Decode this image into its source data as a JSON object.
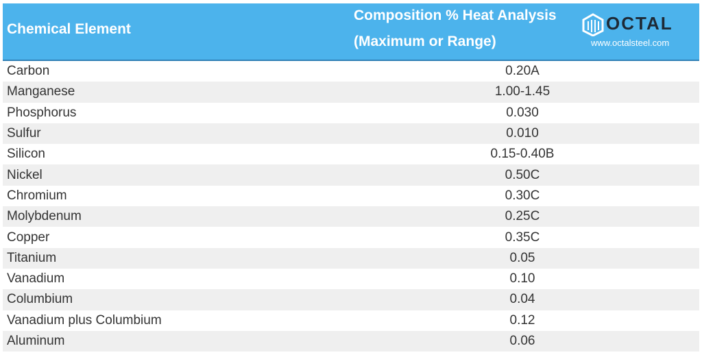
{
  "header": {
    "columns": [
      "Chemical Element",
      "Composition % Heat Analysis",
      "(Maximum or Range)"
    ],
    "logo": {
      "name": "OCTAL",
      "url": "www.octalsteel.com"
    }
  },
  "table": {
    "rows": [
      [
        "Carbon",
        "0.20A"
      ],
      [
        "Manganese",
        "1.00-1.45"
      ],
      [
        "Phosphorus",
        "0.030"
      ],
      [
        "Sulfur",
        "0.010"
      ],
      [
        "Silicon",
        "0.15-0.40B"
      ],
      [
        "Nickel",
        "0.50C"
      ],
      [
        "Chromium",
        "0.30C"
      ],
      [
        "Molybdenum",
        "0.25C"
      ],
      [
        "Copper",
        "0.35C"
      ],
      [
        "Titanium",
        "0.05"
      ],
      [
        "Vanadium",
        "0.10"
      ],
      [
        "Columbium",
        "0.04"
      ],
      [
        "Vanadium plus Columbium",
        "0.12"
      ],
      [
        "Aluminum",
        "0.06"
      ]
    ]
  }
}
